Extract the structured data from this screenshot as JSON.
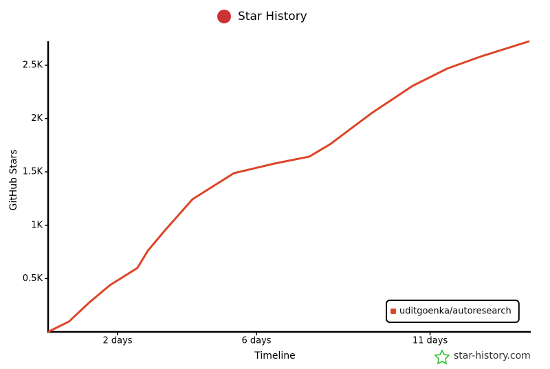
{
  "chart_data": {
    "type": "line",
    "title": "Star History",
    "x_label": "Timeline",
    "y_label": "GitHub Stars",
    "watermark": "star-history.com",
    "x": [
      0,
      0.6,
      1.19,
      1.78,
      2.57,
      2.87,
      3.37,
      4.16,
      5.35,
      6.53,
      7.52,
      8.12,
      9.31,
      10.5,
      11.49,
      12.48,
      13.86
    ],
    "series": [
      {
        "name": "uditgoenka/autoresearch",
        "color": "#dd4528",
        "values": [
          0,
          97,
          277,
          438,
          599,
          760,
          954,
          1244,
          1488,
          1579,
          1643,
          1759,
          2049,
          2307,
          2468,
          2584,
          2725
        ]
      }
    ],
    "xlim": [
      0,
      13.86
    ],
    "ylim": [
      0,
      2725
    ],
    "xticks": [
      {
        "value": 2,
        "label": "2 days"
      },
      {
        "value": 6,
        "label": "6 days"
      },
      {
        "value": 11,
        "label": "11 days"
      }
    ],
    "yticks": [
      {
        "value": 500,
        "label": "0.5K"
      },
      {
        "value": 1000,
        "label": "1K"
      },
      {
        "value": 1500,
        "label": "1.5K"
      },
      {
        "value": 2000,
        "label": "2K"
      },
      {
        "value": 2500,
        "label": "2.5K"
      }
    ],
    "legend": "bottom-right",
    "grid": false
  }
}
